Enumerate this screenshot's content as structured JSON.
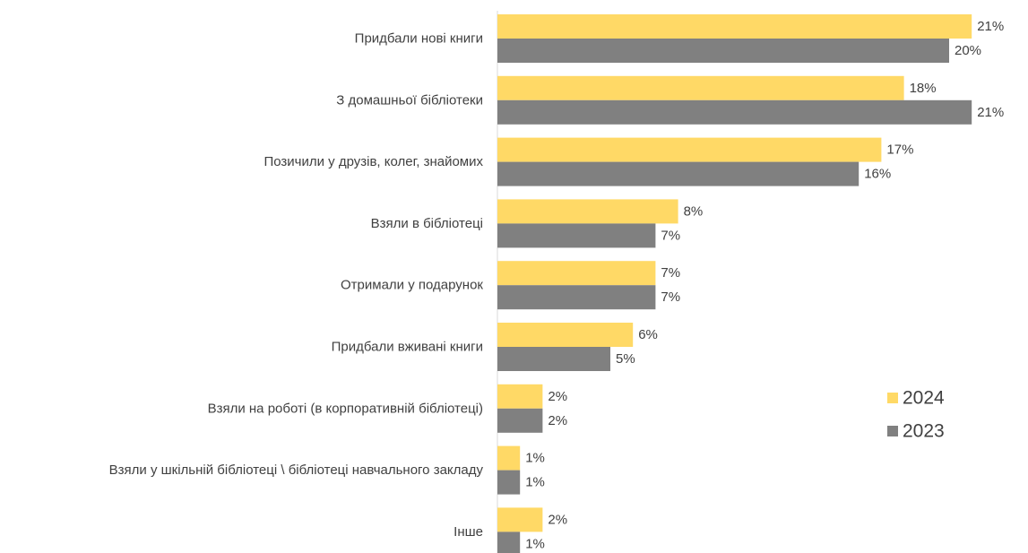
{
  "chart_data": {
    "type": "bar",
    "orientation": "horizontal",
    "categories": [
      "Придбали нові книги",
      "З домашньої бібліотеки",
      "Позичили у друзів, колег, знайомих",
      "Взяли в бібліотеці",
      "Отримали у подарунок",
      "Придбали вживані книги",
      "Взяли на роботі (в корпоративній бібліотеці)",
      "Взяли у шкільній бібліотеці \\ бібліотеці навчального закладу",
      "Інше"
    ],
    "series": [
      {
        "name": "2024",
        "color": "#FFD966",
        "values": [
          21,
          18,
          17,
          8,
          7,
          6,
          2,
          1,
          2
        ],
        "labels": [
          "21%",
          "18%",
          "17%",
          "8%",
          "7%",
          "6%",
          "2%",
          "1%",
          "2%"
        ]
      },
      {
        "name": "2023",
        "color": "#808080",
        "values": [
          20,
          21,
          16,
          7,
          7,
          5,
          2,
          1,
          1
        ],
        "labels": [
          "20%",
          "21%",
          "16%",
          "7%",
          "7%",
          "5%",
          "2%",
          "1%",
          "1%"
        ]
      }
    ],
    "unit": "%",
    "legend_position": "right",
    "grid": false
  }
}
